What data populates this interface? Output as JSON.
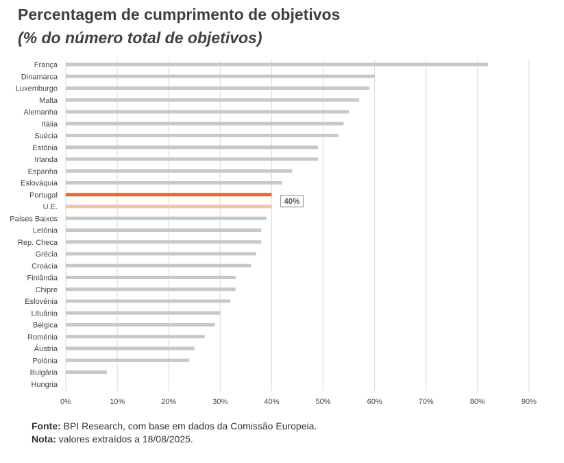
{
  "title": "Percentagem de cumprimento de objetivos",
  "subtitle": "(% do número total de objetivos)",
  "chart_data": {
    "type": "bar",
    "orientation": "horizontal",
    "categories": [
      "França",
      "Dinamarca",
      "Luxemburgo",
      "Malta",
      "Alemanha",
      "Itália",
      "Suécia",
      "Estónia",
      "Irlanda",
      "Espanha",
      "Eslováquia",
      "Portugal",
      "U.E.",
      "Países Baixos",
      "Letónia",
      "Rep. Checa",
      "Grécia",
      "Croácia",
      "Finlândia",
      "Chipre",
      "Eslovénia",
      "Lituânia",
      "Bélgica",
      "Roménia",
      "Áustria",
      "Polónia",
      "Bulgária",
      "Hungria"
    ],
    "values": [
      82,
      60,
      59,
      57,
      55,
      54,
      53,
      49,
      49,
      44,
      42,
      40,
      40,
      39,
      38,
      38,
      37,
      36,
      33,
      33,
      32,
      30,
      29,
      27,
      25,
      24,
      8,
      0
    ],
    "x_ticks": [
      "0%",
      "10%",
      "20%",
      "30%",
      "40%",
      "50%",
      "60%",
      "70%",
      "80%",
      "90%"
    ],
    "xlim": [
      0,
      90
    ],
    "grid": true,
    "colors": {
      "default": "#c8c8c8",
      "Portugal": "#f26522",
      "U.E.": "#f9c3a2",
      "grid": "#d9d9d9"
    },
    "annotation": {
      "category": "Portugal",
      "label": "40%"
    }
  },
  "notes": {
    "source_label": "Fonte:",
    "source_text": " BPI Research, com base em dados da Comissão Europeia.",
    "note_label": "Nota:",
    "note_text": " valores extraídos a 18/08/2025."
  }
}
